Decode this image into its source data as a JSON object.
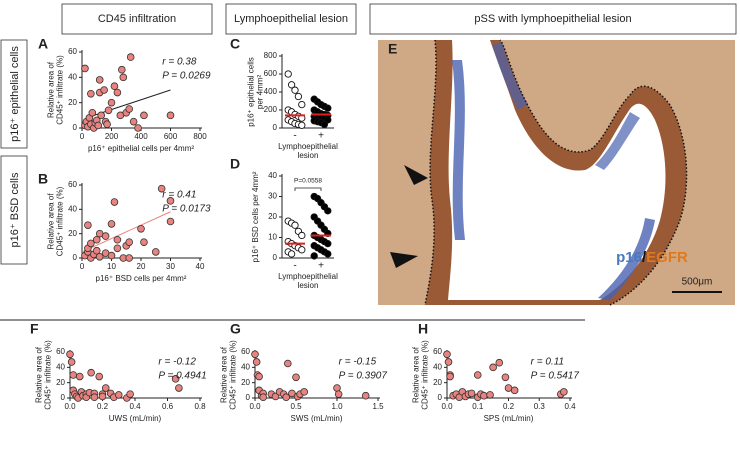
{
  "headers": [
    "CD45 infiltration",
    "Lymphoepithelial lesion",
    "pSS with lymphoepithelial lesion"
  ],
  "row_labels": [
    "p16⁺ epithelial cells",
    "p16⁺ BSD cells"
  ],
  "chart_data": [
    {
      "type": "scatter",
      "panel": "A",
      "xlabel": "p16⁺ epithelial cells per 4mm²",
      "ylabel": [
        "Relative area of",
        "CD45⁺ infiltrate (%)"
      ],
      "xlim": [
        0,
        800
      ],
      "xticks": [
        0,
        200,
        400,
        600,
        800
      ],
      "ylim": [
        0,
        60
      ],
      "yticks": [
        0,
        20,
        40,
        60
      ],
      "x": [
        20,
        30,
        40,
        50,
        60,
        70,
        80,
        90,
        100,
        110,
        120,
        130,
        150,
        160,
        170,
        180,
        200,
        220,
        240,
        260,
        280,
        300,
        320,
        330,
        350,
        380,
        420,
        600,
        60,
        20,
        120,
        270
      ],
      "values": [
        2,
        5,
        1,
        8,
        3,
        12,
        0,
        4,
        6,
        2,
        28,
        10,
        30,
        5,
        3,
        14,
        20,
        33,
        28,
        10,
        40,
        12,
        15,
        56,
        5,
        0,
        10,
        10,
        27,
        47,
        38,
        46
      ],
      "color": "#e8837f",
      "fit_x": [
        30,
        600
      ],
      "fit_y": [
        8,
        30
      ],
      "fit_color": "#222",
      "annotations": [
        "r = 0.38",
        "P = 0.0269"
      ]
    },
    {
      "type": "scatter",
      "panel": "B",
      "xlabel": "p16⁺ BSD cells per 4mm²",
      "ylabel": [
        "Relative area of",
        "CD45⁺ infiltrate (%)"
      ],
      "xlim": [
        0,
        40
      ],
      "xticks": [
        0,
        10,
        20,
        30,
        40
      ],
      "ylim": [
        0,
        60
      ],
      "yticks": [
        0,
        20,
        40,
        60
      ],
      "x": [
        1,
        2,
        2,
        3,
        3,
        4,
        5,
        5,
        6,
        6,
        8,
        10,
        10,
        11,
        12,
        12,
        14,
        15,
        16,
        16,
        20,
        21,
        25,
        27,
        30,
        30,
        2,
        8
      ],
      "values": [
        2,
        5,
        8,
        0,
        12,
        3,
        6,
        15,
        1,
        20,
        4,
        2,
        28,
        46,
        15,
        8,
        0,
        10,
        13,
        0,
        24,
        13,
        5,
        57,
        30,
        47,
        27,
        18
      ],
      "color": "#e8837f",
      "fit_x": [
        0,
        30
      ],
      "fit_y": [
        5,
        38
      ],
      "fit_color": "#e8837f",
      "annotations": [
        "r = 0.41",
        "P = 0.0173"
      ]
    },
    {
      "type": "strip",
      "panel": "C",
      "ylabel": [
        "p16⁺ epithelial cells",
        "per 4mm²"
      ],
      "xlabel": [
        "Lymphoepithelial",
        "lesion"
      ],
      "categories": [
        "-",
        "+"
      ],
      "ylim": [
        0,
        800
      ],
      "yticks": [
        0,
        200,
        400,
        600,
        800
      ],
      "values": [
        [
          600,
          480,
          420,
          350,
          260,
          200,
          180,
          150,
          130,
          110,
          90,
          70,
          50,
          40,
          30
        ],
        [
          320,
          290,
          260,
          240,
          220,
          200,
          180,
          160,
          150,
          140,
          130,
          120,
          110,
          100,
          90,
          80,
          70,
          60,
          40
        ]
      ],
      "medians": [
        140,
        150
      ],
      "colors": [
        "#ffffff",
        "#000000"
      ],
      "median_color": "#e02020"
    },
    {
      "type": "strip",
      "panel": "D",
      "ylabel": [
        "p16⁺ BSD cells per 4mm²"
      ],
      "xlabel": [
        "Lymphoepithelial",
        "lesion"
      ],
      "categories": [
        "-",
        "+"
      ],
      "ylim": [
        0,
        40
      ],
      "yticks": [
        0,
        10,
        20,
        30,
        40
      ],
      "values": [
        [
          18,
          17,
          16,
          13,
          11,
          8,
          7,
          6,
          5,
          4,
          3,
          2
        ],
        [
          30,
          29,
          27,
          25,
          23,
          20,
          18,
          16,
          14,
          12,
          11,
          10,
          9,
          8,
          7,
          6,
          5,
          4,
          3,
          2,
          1
        ]
      ],
      "medians": [
        7,
        11
      ],
      "colors": [
        "#ffffff",
        "#000000"
      ],
      "median_color": "#e02020",
      "annotation": "P=0.0558"
    },
    {
      "type": "scatter",
      "panel": "F",
      "xlabel": "UWS (mL/min)",
      "ylabel": [
        "Relative area of",
        "CD45⁺ infiltrate (%)"
      ],
      "xlim": [
        0,
        0.8
      ],
      "xticks": [
        {
          "value": 0,
          "label": "0.0"
        },
        0.2,
        0.4,
        0.6,
        0.8
      ],
      "ylim": [
        0,
        60
      ],
      "yticks": [
        0,
        20,
        40,
        60
      ],
      "x": [
        0,
        0.01,
        0.02,
        0.02,
        0.03,
        0.04,
        0.05,
        0.06,
        0.07,
        0.08,
        0.1,
        0.1,
        0.12,
        0.13,
        0.15,
        0.15,
        0.18,
        0.2,
        0.2,
        0.22,
        0.25,
        0.27,
        0.3,
        0.35,
        0.37,
        0.65,
        0.67
      ],
      "values": [
        57,
        47,
        30,
        10,
        5,
        2,
        0,
        28,
        8,
        3,
        5,
        1,
        7,
        33,
        6,
        1,
        28,
        5,
        2,
        13,
        6,
        1,
        4,
        0,
        5,
        25,
        13
      ],
      "color": "#e8837f",
      "annotations": [
        "r = -0.12",
        "P = 0.4941"
      ]
    },
    {
      "type": "scatter",
      "panel": "G",
      "xlabel": "SWS (mL/min)",
      "ylabel": [
        "Relative area of",
        "CD45⁺ infiltrate (%)"
      ],
      "xlim": [
        0,
        1.5
      ],
      "xticks": [
        {
          "value": 0,
          "label": "0.0"
        },
        0.5,
        {
          "value": 1,
          "label": "1.0"
        },
        1.5
      ],
      "ylim": [
        0,
        60
      ],
      "yticks": [
        0,
        20,
        40,
        60
      ],
      "x": [
        0,
        0.02,
        0.03,
        0.05,
        0.05,
        0.08,
        0.1,
        0.1,
        0.2,
        0.25,
        0.3,
        0.35,
        0.38,
        0.4,
        0.45,
        0.5,
        0.52,
        0.55,
        0.6,
        1.0,
        1.02,
        1.35
      ],
      "values": [
        57,
        47,
        30,
        28,
        10,
        3,
        6,
        1,
        5,
        2,
        8,
        5,
        1,
        45,
        6,
        27,
        2,
        5,
        8,
        13,
        5,
        3
      ],
      "color": "#e8837f",
      "annotations": [
        "r = -0.15",
        "P = 0.3907"
      ]
    },
    {
      "type": "scatter",
      "panel": "H",
      "xlabel": "SPS (mL/min)",
      "ylabel": [
        "Relative area of",
        "CD45⁺ infiltrate (%)"
      ],
      "xlim": [
        0,
        0.4
      ],
      "xticks": [
        {
          "value": 0,
          "label": "0.0"
        },
        0.1,
        0.2,
        0.3,
        0.4
      ],
      "ylim": [
        0,
        60
      ],
      "yticks": [
        0,
        20,
        40,
        60
      ],
      "x": [
        0,
        0.005,
        0.01,
        0.01,
        0.02,
        0.03,
        0.04,
        0.05,
        0.06,
        0.07,
        0.08,
        0.1,
        0.1,
        0.11,
        0.12,
        0.14,
        0.15,
        0.17,
        0.19,
        0.2,
        0.22,
        0.37,
        0.38
      ],
      "values": [
        57,
        47,
        30,
        28,
        3,
        5,
        1,
        8,
        2,
        5,
        6,
        30,
        1,
        5,
        3,
        4,
        40,
        46,
        27,
        13,
        10,
        5,
        8
      ],
      "color": "#e8837f",
      "annotations": [
        "r = 0.11",
        "P = 0.5417"
      ]
    }
  ],
  "image": {
    "panel": "E",
    "legend": [
      "p16",
      "/",
      "EGFR"
    ],
    "legend_colors": [
      "#4a78c0",
      "#111111",
      "#e0781e"
    ],
    "scale": "500μm"
  }
}
